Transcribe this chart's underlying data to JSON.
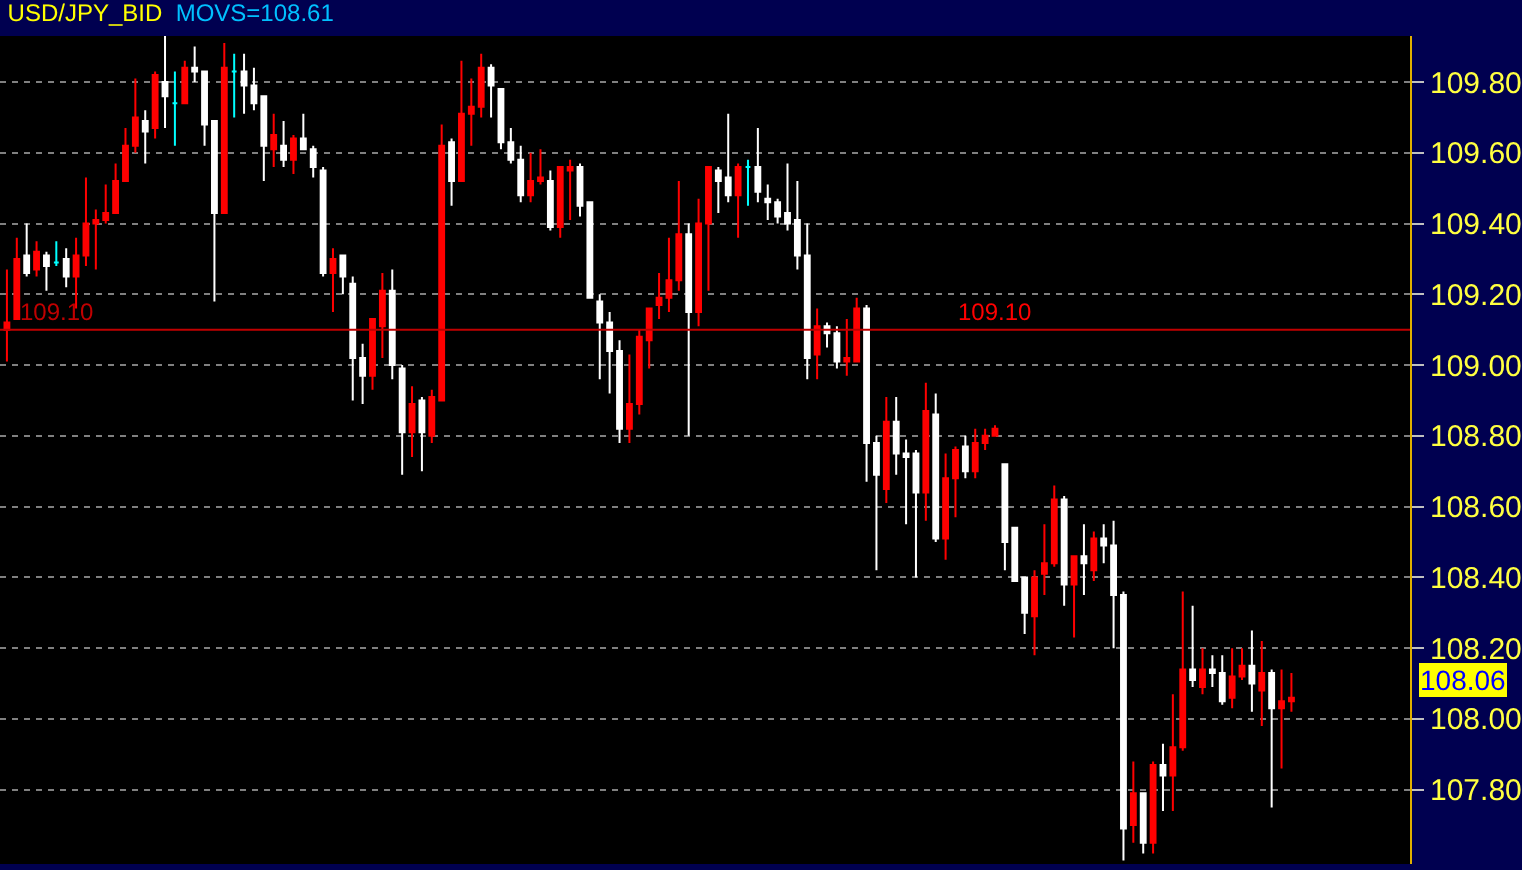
{
  "chart_data": {
    "type": "candlestick",
    "title": "USD/JPY_BID",
    "subtitle": "MOVS=108.61",
    "categories": [
      null,
      null,
      null,
      null,
      null,
      null,
      null,
      null,
      null,
      null,
      null,
      null,
      null,
      null,
      null,
      null,
      null,
      null,
      null,
      null,
      null,
      null,
      null,
      null,
      null,
      null,
      null,
      null,
      null,
      null,
      null,
      null,
      null,
      null,
      null,
      null,
      null,
      null,
      null,
      null,
      null,
      null,
      null,
      null,
      null,
      null,
      null,
      null,
      null,
      null,
      null,
      null,
      null,
      null,
      null,
      null,
      null,
      null,
      null,
      null,
      null,
      null,
      null,
      null,
      null,
      null,
      null,
      null,
      null,
      null,
      null,
      null,
      null,
      null,
      null,
      null,
      null,
      null,
      null,
      null,
      null,
      null,
      null,
      null,
      null,
      null,
      null,
      null,
      null,
      null,
      null,
      null,
      null,
      null,
      null,
      null,
      null,
      null,
      null,
      null,
      null,
      null,
      null,
      null,
      null,
      null,
      null,
      null,
      null,
      null,
      null,
      null,
      null,
      null,
      null,
      null,
      null,
      null,
      null,
      null,
      null,
      null,
      null,
      null,
      null,
      null,
      null,
      null,
      null,
      null,
      null
    ],
    "ohlc": [
      [
        109.1,
        109.27,
        109.01,
        109.12
      ],
      [
        109.13,
        109.36,
        109.13,
        109.3
      ],
      [
        109.31,
        109.4,
        109.25,
        109.26
      ],
      [
        109.27,
        109.35,
        109.25,
        109.32
      ],
      [
        109.31,
        109.32,
        109.21,
        109.28
      ],
      [
        109.29,
        109.35,
        109.28,
        109.29
      ],
      [
        109.3,
        109.33,
        109.22,
        109.25
      ],
      [
        109.25,
        109.36,
        109.16,
        109.31
      ],
      [
        109.31,
        109.53,
        109.28,
        109.4
      ],
      [
        109.4,
        109.44,
        109.27,
        109.41
      ],
      [
        109.41,
        109.51,
        109.4,
        109.43
      ],
      [
        109.43,
        109.57,
        109.43,
        109.52
      ],
      [
        109.52,
        109.67,
        109.52,
        109.62
      ],
      [
        109.62,
        109.81,
        109.6,
        109.7
      ],
      [
        109.69,
        109.72,
        109.57,
        109.66
      ],
      [
        109.67,
        109.83,
        109.64,
        109.82
      ],
      [
        109.8,
        109.93,
        109.67,
        109.76
      ],
      [
        109.74,
        109.83,
        109.62,
        109.74
      ],
      [
        109.74,
        109.86,
        109.74,
        109.84
      ],
      [
        109.84,
        109.9,
        109.8,
        109.83
      ],
      [
        109.83,
        109.83,
        109.62,
        109.68
      ],
      [
        109.69,
        109.69,
        109.18,
        109.43
      ],
      [
        109.43,
        109.91,
        109.43,
        109.84
      ],
      [
        109.83,
        109.88,
        109.7,
        109.83
      ],
      [
        109.83,
        109.88,
        109.71,
        109.79
      ],
      [
        109.79,
        109.84,
        109.72,
        109.74
      ],
      [
        109.76,
        109.76,
        109.52,
        109.62
      ],
      [
        109.61,
        109.71,
        109.56,
        109.65
      ],
      [
        109.62,
        109.69,
        109.56,
        109.58
      ],
      [
        109.58,
        109.65,
        109.54,
        109.64
      ],
      [
        109.64,
        109.71,
        109.61,
        109.61
      ],
      [
        109.61,
        109.62,
        109.53,
        109.56
      ],
      [
        109.55,
        109.56,
        109.25,
        109.26
      ],
      [
        109.26,
        109.33,
        109.15,
        109.3
      ],
      [
        109.31,
        109.31,
        109.2,
        109.25
      ],
      [
        109.23,
        109.25,
        108.9,
        109.02
      ],
      [
        109.02,
        109.06,
        108.89,
        108.97
      ],
      [
        108.97,
        109.13,
        108.93,
        109.13
      ],
      [
        109.11,
        109.26,
        109.02,
        109.21
      ],
      [
        109.21,
        109.27,
        108.96,
        109.0
      ],
      [
        108.99,
        109.0,
        108.69,
        108.81
      ],
      [
        108.81,
        108.94,
        108.74,
        108.89
      ],
      [
        108.9,
        108.91,
        108.7,
        108.81
      ],
      [
        108.8,
        108.93,
        108.78,
        108.91
      ],
      [
        108.9,
        109.68,
        108.9,
        109.62
      ],
      [
        109.63,
        109.64,
        109.45,
        109.52
      ],
      [
        109.52,
        109.86,
        109.52,
        109.71
      ],
      [
        109.71,
        109.81,
        109.62,
        109.73
      ],
      [
        109.73,
        109.88,
        109.7,
        109.84
      ],
      [
        109.84,
        109.85,
        109.7,
        109.79
      ],
      [
        109.78,
        109.78,
        109.61,
        109.63
      ],
      [
        109.63,
        109.67,
        109.57,
        109.58
      ],
      [
        109.58,
        109.62,
        109.46,
        109.48
      ],
      [
        109.48,
        109.6,
        109.46,
        109.52
      ],
      [
        109.52,
        109.61,
        109.51,
        109.53
      ],
      [
        109.52,
        109.55,
        109.38,
        109.39
      ],
      [
        109.39,
        109.56,
        109.36,
        109.56
      ],
      [
        109.55,
        109.58,
        109.41,
        109.56
      ],
      [
        109.56,
        109.57,
        109.42,
        109.45
      ],
      [
        109.46,
        109.46,
        109.19,
        109.19
      ],
      [
        109.18,
        109.2,
        108.96,
        109.12
      ],
      [
        109.12,
        109.15,
        108.92,
        109.04
      ],
      [
        109.04,
        109.07,
        108.78,
        108.82
      ],
      [
        108.82,
        109.03,
        108.78,
        108.89
      ],
      [
        108.89,
        109.1,
        108.86,
        109.08
      ],
      [
        109.07,
        109.16,
        108.99,
        109.16
      ],
      [
        109.17,
        109.26,
        109.13,
        109.19
      ],
      [
        109.19,
        109.36,
        109.15,
        109.24
      ],
      [
        109.24,
        109.52,
        109.21,
        109.37
      ],
      [
        109.37,
        109.4,
        108.8,
        109.15
      ],
      [
        109.15,
        109.47,
        109.11,
        109.4
      ],
      [
        109.4,
        109.56,
        109.21,
        109.56
      ],
      [
        109.55,
        109.56,
        109.43,
        109.52
      ],
      [
        109.53,
        109.71,
        109.46,
        109.48
      ],
      [
        109.48,
        109.57,
        109.36,
        109.56
      ],
      [
        109.56,
        109.58,
        109.45,
        109.56
      ],
      [
        109.56,
        109.67,
        109.46,
        109.49
      ],
      [
        109.47,
        109.51,
        109.41,
        109.46
      ],
      [
        109.46,
        109.47,
        109.4,
        109.42
      ],
      [
        109.43,
        109.57,
        109.38,
        109.4
      ],
      [
        109.41,
        109.52,
        109.27,
        109.31
      ],
      [
        109.31,
        109.4,
        108.96,
        109.02
      ],
      [
        109.03,
        109.16,
        108.96,
        109.11
      ],
      [
        109.11,
        109.12,
        109.05,
        109.09
      ],
      [
        109.09,
        109.11,
        108.99,
        109.01
      ],
      [
        109.01,
        109.13,
        108.97,
        109.02
      ],
      [
        109.01,
        109.19,
        109.01,
        109.16
      ],
      [
        109.16,
        109.17,
        108.67,
        108.78
      ],
      [
        108.78,
        108.8,
        108.42,
        108.69
      ],
      [
        108.65,
        108.91,
        108.61,
        108.84
      ],
      [
        108.84,
        108.91,
        108.69,
        108.75
      ],
      [
        108.75,
        108.79,
        108.55,
        108.74
      ],
      [
        108.75,
        108.76,
        108.4,
        108.64
      ],
      [
        108.64,
        108.95,
        108.56,
        108.87
      ],
      [
        108.86,
        108.92,
        108.5,
        108.51
      ],
      [
        108.51,
        108.75,
        108.45,
        108.68
      ],
      [
        108.68,
        108.77,
        108.57,
        108.76
      ],
      [
        108.77,
        108.8,
        108.68,
        108.7
      ],
      [
        108.7,
        108.82,
        108.68,
        108.78
      ],
      [
        108.78,
        108.82,
        108.76,
        108.8
      ],
      [
        108.8,
        108.83,
        108.8,
        108.82
      ],
      [
        108.72,
        108.72,
        108.42,
        108.5
      ],
      [
        108.54,
        108.54,
        108.39,
        108.39
      ],
      [
        108.4,
        108.4,
        108.24,
        108.3
      ],
      [
        108.29,
        108.42,
        108.18,
        108.4
      ],
      [
        108.41,
        108.55,
        108.35,
        108.44
      ],
      [
        108.44,
        108.66,
        108.43,
        108.62
      ],
      [
        108.62,
        108.63,
        108.32,
        108.38
      ],
      [
        108.38,
        108.46,
        108.23,
        108.46
      ],
      [
        108.46,
        108.55,
        108.35,
        108.44
      ],
      [
        108.42,
        108.53,
        108.39,
        108.51
      ],
      [
        108.51,
        108.55,
        108.44,
        108.49
      ],
      [
        108.49,
        108.56,
        108.2,
        108.35
      ],
      [
        108.35,
        108.36,
        107.6,
        107.69
      ],
      [
        107.7,
        107.88,
        107.65,
        107.79
      ],
      [
        107.79,
        107.79,
        107.62,
        107.65
      ],
      [
        107.65,
        107.88,
        107.62,
        107.87
      ],
      [
        107.87,
        107.93,
        107.74,
        107.84
      ],
      [
        107.84,
        108.07,
        107.74,
        107.92
      ],
      [
        107.92,
        108.36,
        107.91,
        108.14
      ],
      [
        108.14,
        108.32,
        108.09,
        108.11
      ],
      [
        108.09,
        108.2,
        108.07,
        108.14
      ],
      [
        108.14,
        108.18,
        108.09,
        108.13
      ],
      [
        108.13,
        108.18,
        108.04,
        108.05
      ],
      [
        108.06,
        108.2,
        108.03,
        108.12
      ],
      [
        108.12,
        108.2,
        108.11,
        108.15
      ],
      [
        108.15,
        108.25,
        108.02,
        108.1
      ],
      [
        108.08,
        108.22,
        107.98,
        108.13
      ],
      [
        108.13,
        108.14,
        107.75,
        108.03
      ],
      [
        108.03,
        108.14,
        107.86,
        108.05
      ],
      [
        108.05,
        108.13,
        108.02,
        108.06
      ]
    ],
    "colors": [
      "#ff0000",
      "#ff0000",
      "#ffffff",
      "#ff0000",
      "#ffffff",
      "#00ffff",
      "#ffffff",
      "#ff0000",
      "#ff0000",
      "#ff0000",
      "#ff0000",
      "#ff0000",
      "#ff0000",
      "#ff0000",
      "#ffffff",
      "#ff0000",
      "#ffffff",
      "#00ffff",
      "#ff0000",
      "#ffffff",
      "#ffffff",
      "#ffffff",
      "#ff0000",
      "#00ffff",
      "#ffffff",
      "#ffffff",
      "#ffffff",
      "#ff0000",
      "#ffffff",
      "#ff0000",
      "#ffffff",
      "#ffffff",
      "#ffffff",
      "#ff0000",
      "#ffffff",
      "#ffffff",
      "#ffffff",
      "#ff0000",
      "#ff0000",
      "#ffffff",
      "#ffffff",
      "#ff0000",
      "#ffffff",
      "#ff0000",
      "#ff0000",
      "#ffffff",
      "#ff0000",
      "#ff0000",
      "#ff0000",
      "#ffffff",
      "#ffffff",
      "#ffffff",
      "#ffffff",
      "#ff0000",
      "#ff0000",
      "#ffffff",
      "#ff0000",
      "#ff0000",
      "#ffffff",
      "#ffffff",
      "#ffffff",
      "#ffffff",
      "#ffffff",
      "#ff0000",
      "#ff0000",
      "#ff0000",
      "#ff0000",
      "#ff0000",
      "#ff0000",
      "#ffffff",
      "#ff0000",
      "#ff0000",
      "#ffffff",
      "#ffffff",
      "#ff0000",
      "#00ffff",
      "#ffffff",
      "#ffffff",
      "#ffffff",
      "#ffffff",
      "#ffffff",
      "#ffffff",
      "#ff0000",
      "#ffffff",
      "#ffffff",
      "#ff0000",
      "#ff0000",
      "#ffffff",
      "#ffffff",
      "#ff0000",
      "#ffffff",
      "#ffffff",
      "#ffffff",
      "#ff0000",
      "#ffffff",
      "#ff0000",
      "#ff0000",
      "#ffffff",
      "#ff0000",
      "#ff0000",
      "#ff0000",
      "#ffffff",
      "#ffffff",
      "#ffffff",
      "#ff0000",
      "#ff0000",
      "#ff0000",
      "#ffffff",
      "#ff0000",
      "#ffffff",
      "#ff0000",
      "#ffffff",
      "#ffffff",
      "#ffffff",
      "#ff0000",
      "#ffffff",
      "#ff0000",
      "#ffffff",
      "#ff0000",
      "#ff0000",
      "#ffffff",
      "#ff0000",
      "#ffffff",
      "#ffffff",
      "#ff0000",
      "#ff0000",
      "#ffffff",
      "#ff0000",
      "#ffffff",
      "#ff0000",
      "#ff0000"
    ],
    "ylim": [
      107.59,
      109.93
    ],
    "yticks": [
      {
        "value": 107.8,
        "label": "107.80"
      },
      {
        "value": 108.0,
        "label": "108.00"
      },
      {
        "value": 108.2,
        "label": "108.20"
      },
      {
        "value": 108.4,
        "label": "108.40"
      },
      {
        "value": 108.6,
        "label": "108.60"
      },
      {
        "value": 108.8,
        "label": "108.80"
      },
      {
        "value": 109.0,
        "label": "109.00"
      },
      {
        "value": 109.2,
        "label": "109.20"
      },
      {
        "value": 109.4,
        "label": "109.40"
      },
      {
        "value": 109.6,
        "label": "109.60"
      },
      {
        "value": 109.8,
        "label": "109.80"
      }
    ],
    "ref_lines": [
      {
        "axis": "y",
        "value": 109.1,
        "label": "109.10",
        "color": "#c00000"
      }
    ],
    "annotations": [
      {
        "text": "109.10",
        "y": 109.1
      },
      "108.06"
    ],
    "grid": "y",
    "tick_labels": "y"
  }
}
